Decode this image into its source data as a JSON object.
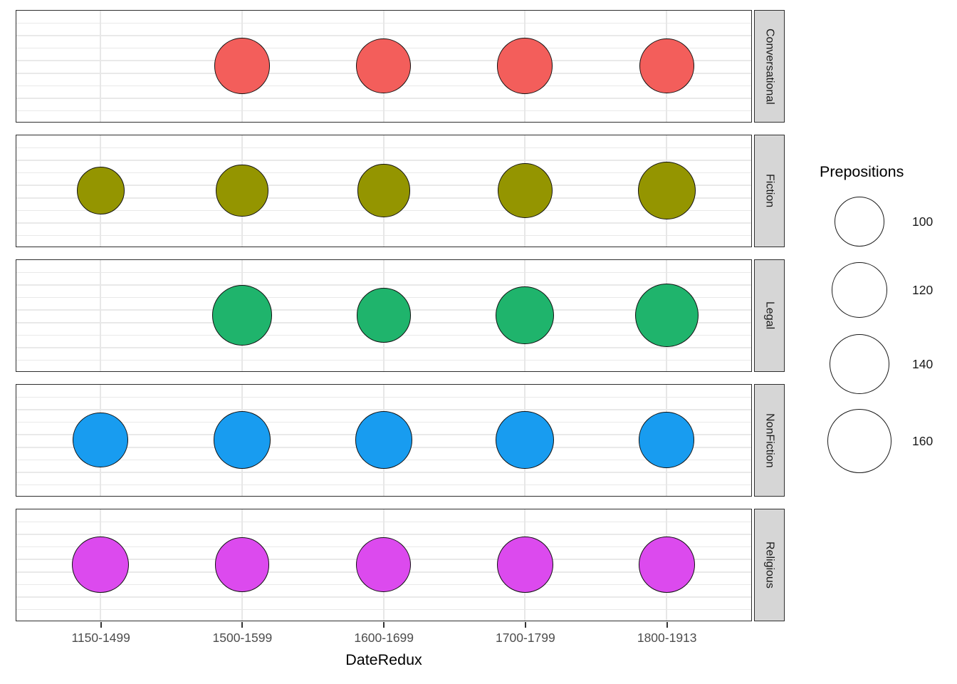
{
  "chart_data": {
    "type": "scatter",
    "subtype": "bubble-balloon-plot",
    "title": "",
    "xlabel": "DateRedux",
    "ylabel": "",
    "grid": true,
    "categories": [
      "1150-1499",
      "1500-1599",
      "1600-1699",
      "1700-1799",
      "1800-1913"
    ],
    "facet_variable": "Genre",
    "size_variable": "Prepositions",
    "facets": [
      {
        "label": "Conversational",
        "color": "#f35e5b",
        "values": [
          null,
          122,
          118,
          122,
          118
        ]
      },
      {
        "label": "Fiction",
        "color": "#949500",
        "values": [
          90,
          107,
          110,
          118,
          130
        ]
      },
      {
        "label": "Legal",
        "color": "#1fb46c",
        "values": [
          null,
          142,
          116,
          134,
          158
        ]
      },
      {
        "label": "NonFiction",
        "color": "#189cf0",
        "values": [
          121,
          128,
          128,
          134,
          122
        ]
      },
      {
        "label": "Religious",
        "color": "#dc4aee",
        "values": [
          126,
          117,
          118,
          124,
          124
        ]
      }
    ],
    "legend": {
      "title": "Prepositions",
      "sizes": [
        100,
        120,
        140,
        160
      ],
      "position": "right"
    },
    "colors": {
      "panel_background": "#ffffff",
      "panel_border": "#2e2e2e",
      "gridline": "#e9e9e9",
      "strip_background": "#d6d6d6",
      "axis_text": "#4d4d4d",
      "text": "#000000"
    }
  }
}
